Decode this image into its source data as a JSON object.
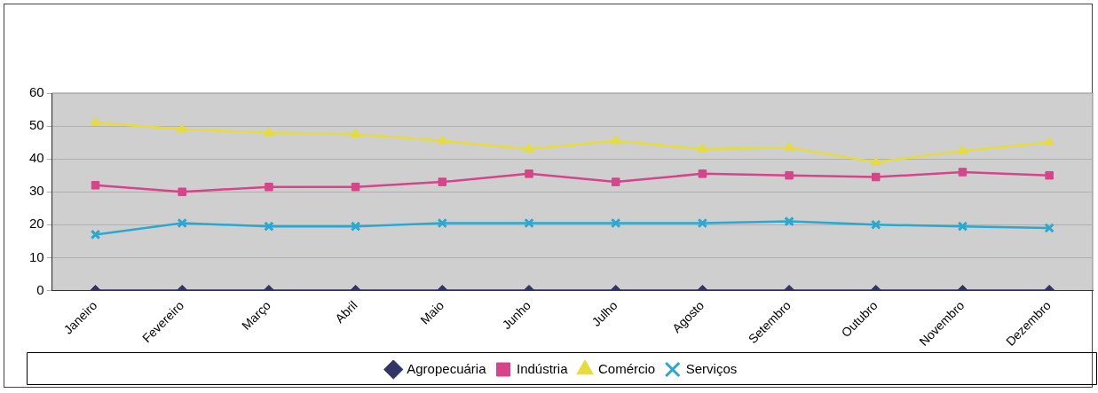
{
  "chart_data": {
    "type": "line",
    "categories": [
      "Janeiro",
      "Fevereiro",
      "Março",
      "Abril",
      "Maio",
      "Junho",
      "Julho",
      "Agosto",
      "Setembro",
      "Outubro",
      "Novembro",
      "Dezembro"
    ],
    "series": [
      {
        "name": "Agropecuária",
        "color": "#333366",
        "marker": "diamond",
        "values": [
          0,
          0,
          0,
          0,
          0,
          0,
          0,
          0,
          0,
          0,
          0,
          0
        ]
      },
      {
        "name": "Indústria",
        "color": "#d6448a",
        "marker": "square",
        "values": [
          32,
          30,
          31.5,
          31.5,
          33,
          35.5,
          33,
          35.5,
          35,
          34.5,
          36,
          35
        ]
      },
      {
        "name": "Comércio",
        "color": "#e6dc3c",
        "marker": "triangle",
        "values": [
          51,
          49,
          48,
          47.5,
          45.5,
          43,
          45.5,
          43,
          43.5,
          39,
          42.5,
          45
        ]
      },
      {
        "name": "Serviços",
        "color": "#2aa8d0",
        "marker": "cross",
        "values": [
          17,
          20.5,
          19.5,
          19.5,
          20.5,
          20.5,
          20.5,
          20.5,
          21,
          20,
          19.5,
          19
        ]
      }
    ],
    "ylim": [
      0,
      60
    ],
    "yticks": [
      0,
      10,
      20,
      30,
      40,
      50,
      60
    ],
    "grid": "y",
    "legend": "bottom",
    "line_style": "solid"
  }
}
